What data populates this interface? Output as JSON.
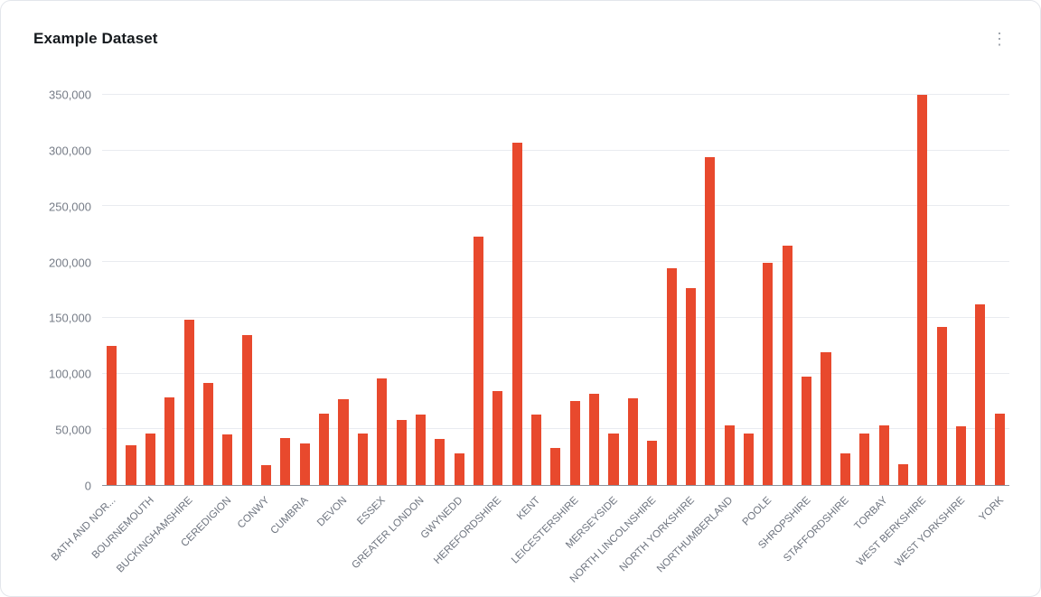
{
  "header": {
    "title": "Example Dataset",
    "menu_icon": "kebab-vertical"
  },
  "chart_data": {
    "type": "bar",
    "title": "Example Dataset",
    "xlabel": "",
    "ylabel": "",
    "grid": true,
    "legend": "none",
    "bar_color": "#e8492d",
    "ylim": [
      0,
      350000
    ],
    "ytick_labels": [
      "0",
      "50,000",
      "100,000",
      "150,000",
      "200,000",
      "250,000",
      "300,000",
      "350,000"
    ],
    "xtick_every": 2,
    "xtick_labels": [
      "BATH AND NOR...",
      "BOURNEMOUTH",
      "BUCKINGHAMSHIRE",
      "CEREDIGION",
      "CONWY",
      "CUMBRIA",
      "DEVON",
      "ESSEX",
      "GREATER LONDON",
      "GWYNEDD",
      "HEREFORDSHIRE",
      "KENT",
      "LEICESTERSHIRE",
      "MERSEYSIDE",
      "NORTH LINCOLNSHIRE",
      "NORTH YORKSHIRE",
      "NORTHUMBERLAND",
      "POOLE",
      "SHROPSHIRE",
      "STAFFORDSHIRE",
      "TORBAY",
      "WEST BERKSHIRE",
      "WEST YORKSHIRE",
      "YORK"
    ],
    "values": [
      124500,
      36000,
      46000,
      79000,
      148000,
      91500,
      45000,
      134500,
      18000,
      42000,
      37500,
      64000,
      77000,
      46500,
      96000,
      58000,
      63000,
      41000,
      28000,
      223000,
      84500,
      307000,
      63000,
      33500,
      75500,
      82000,
      46500,
      78000,
      40000,
      194500,
      176500,
      294000,
      53500,
      46500,
      199500,
      214500,
      97500,
      119500,
      28500,
      46500,
      53500,
      19000,
      350000,
      141500,
      52500,
      162000,
      64000
    ]
  }
}
